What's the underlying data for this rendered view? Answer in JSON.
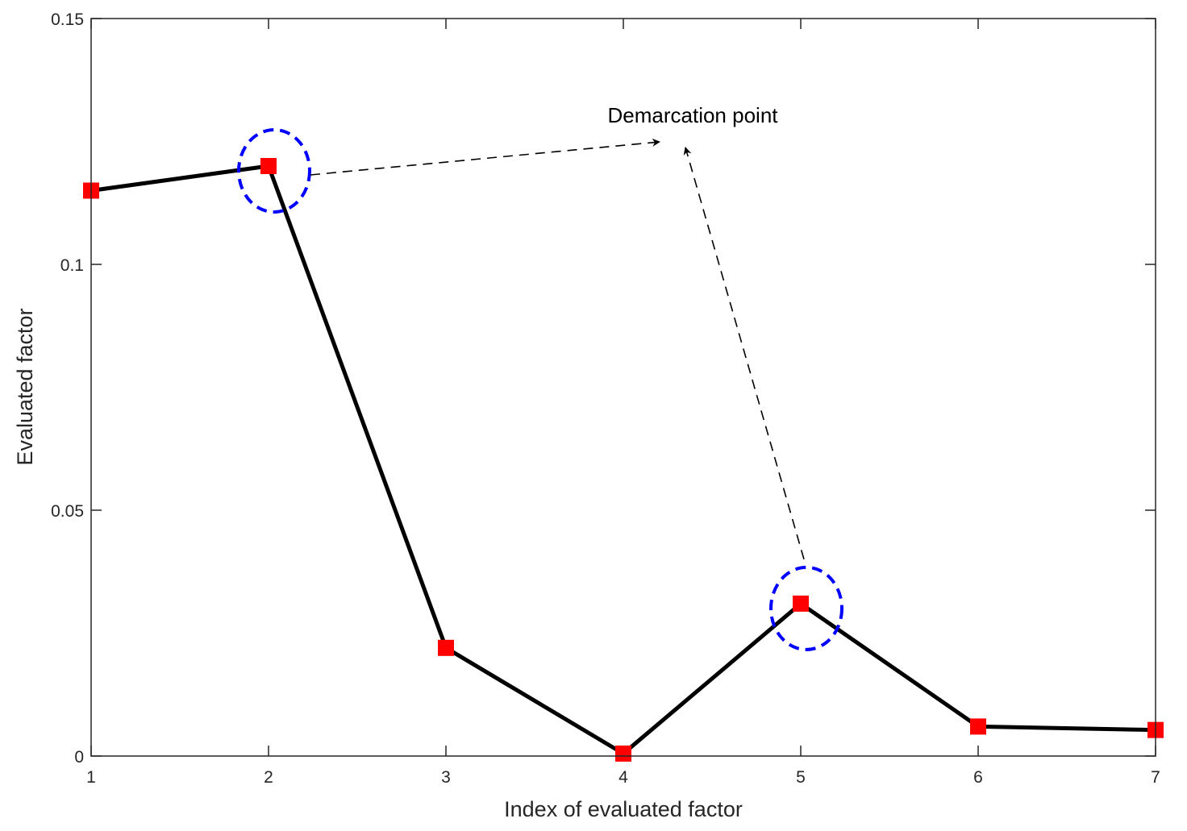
{
  "chart_data": {
    "type": "line",
    "title": "",
    "xlabel": "Index of evaluated factor",
    "ylabel": "Evaluated factor",
    "x": [
      1,
      2,
      3,
      4,
      5,
      6,
      7
    ],
    "xlim": [
      1,
      7
    ],
    "ylim": [
      0,
      0.15
    ],
    "xticks": [
      1,
      2,
      3,
      4,
      5,
      6,
      7
    ],
    "xtick_labels": [
      "1",
      "2",
      "3",
      "4",
      "5",
      "6",
      "7"
    ],
    "yticks": [
      0,
      0.05,
      0.1,
      0.15
    ],
    "ytick_labels": [
      "0",
      "0.05",
      "0.1",
      "0.15"
    ],
    "series": [
      {
        "values": [
          0.115,
          0.12,
          0.022,
          0.0005,
          0.031,
          0.006,
          0.0053
        ],
        "line_color": "#000000",
        "marker": "square",
        "marker_color": "#ff0000"
      }
    ],
    "highlighted_points": [
      2,
      5
    ],
    "highlight_color": "#0000ff",
    "annotation": {
      "text": "Demarcation point",
      "arrow_style": "dashed",
      "points_to": [
        2,
        5
      ]
    },
    "grid": false,
    "legend": "none"
  }
}
